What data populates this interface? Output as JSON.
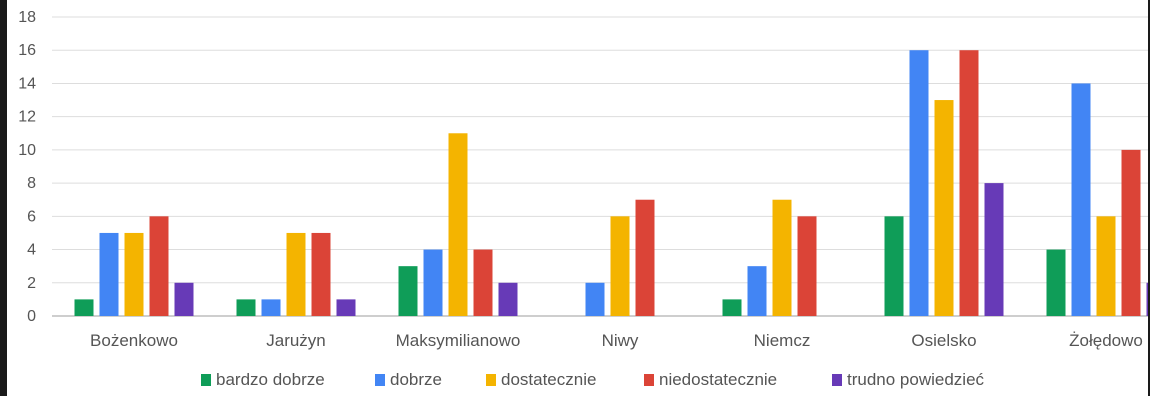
{
  "chart_data": {
    "type": "bar",
    "categories": [
      "Bożenkowo",
      "Jarużyn",
      "Maksymilianowo",
      "Niwy",
      "Niemcz",
      "Osielsko",
      "Żołędowo"
    ],
    "series": [
      {
        "name": "bardzo dobrze",
        "color": "#0f9d58",
        "values": [
          1,
          1,
          3,
          0,
          1,
          6,
          4
        ]
      },
      {
        "name": "dobrze",
        "color": "#4285f4",
        "values": [
          5,
          1,
          4,
          2,
          3,
          16,
          14
        ]
      },
      {
        "name": "dostatecznie",
        "color": "#f4b400",
        "values": [
          5,
          5,
          11,
          6,
          7,
          13,
          6
        ]
      },
      {
        "name": "niedostatecznie",
        "color": "#db4437",
        "values": [
          6,
          5,
          4,
          7,
          6,
          16,
          10
        ]
      },
      {
        "name": "trudno powiedzieć",
        "color": "#673ab7",
        "values": [
          2,
          1,
          2,
          0,
          0,
          8,
          2
        ]
      }
    ],
    "ylim": [
      0,
      18
    ],
    "yticks": [
      0,
      2,
      4,
      6,
      8,
      10,
      12,
      14,
      16,
      18
    ],
    "grid": true,
    "legend_position": "bottom"
  }
}
